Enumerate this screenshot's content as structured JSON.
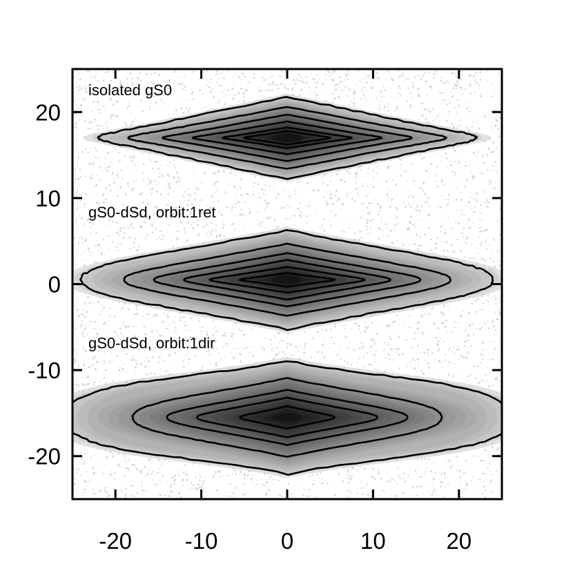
{
  "chart_data": {
    "type": "contour",
    "xlim": [
      -25,
      25
    ],
    "ylim": [
      -25,
      25
    ],
    "xticks": [
      -20,
      -10,
      0,
      10,
      20
    ],
    "yticks": [
      20,
      10,
      0,
      -10,
      -20
    ],
    "xtick_labels": [
      "-20",
      "-10",
      "0",
      "10",
      "20"
    ],
    "ytick_labels": [
      "20",
      "10",
      "0",
      "-10",
      "-20"
    ],
    "xlabel": "",
    "ylabel": "",
    "title": "",
    "grid": false,
    "colormap": "grayscale density with black contour lines",
    "panels": [
      {
        "label": "isolated gS0",
        "center": [
          0,
          17
        ],
        "contour_half_extents": [
          [
            22,
            4.8
          ],
          [
            18.5,
            3.6
          ],
          [
            14.5,
            2.7
          ],
          [
            11,
            1.9
          ],
          [
            7.5,
            1.2
          ],
          [
            5,
            0.8
          ]
        ],
        "tail_peak_ratio": [
          0.25,
          0.22,
          0.2,
          0.2,
          0.22,
          0.28
        ]
      },
      {
        "label": "gS0-dSd, orbit:1ret",
        "center": [
          0,
          0.5
        ],
        "contour_half_extents": [
          [
            24,
            5.8
          ],
          [
            19,
            4.2
          ],
          [
            15.5,
            3.1
          ],
          [
            12,
            2.3
          ],
          [
            9,
            1.5
          ],
          [
            5.5,
            0.8
          ]
        ],
        "tail_peak_ratio": [
          0.55,
          0.45,
          0.35,
          0.3,
          0.28,
          0.28
        ]
      },
      {
        "label": "gS0-dSd, orbit:1dir",
        "center": [
          0,
          -15.5
        ],
        "contour_half_extents": [
          [
            26,
            6.6
          ],
          [
            18,
            4.6
          ],
          [
            14,
            3.2
          ],
          [
            10.5,
            2.3
          ],
          [
            5.5,
            1.3
          ]
        ],
        "tail_peak_ratio": [
          0.85,
          0.6,
          0.45,
          0.38,
          0.35
        ]
      }
    ]
  },
  "colors": {
    "axis": "#000000",
    "contour": "#000000",
    "noise": "#b8b8b8",
    "background": "#ffffff"
  }
}
